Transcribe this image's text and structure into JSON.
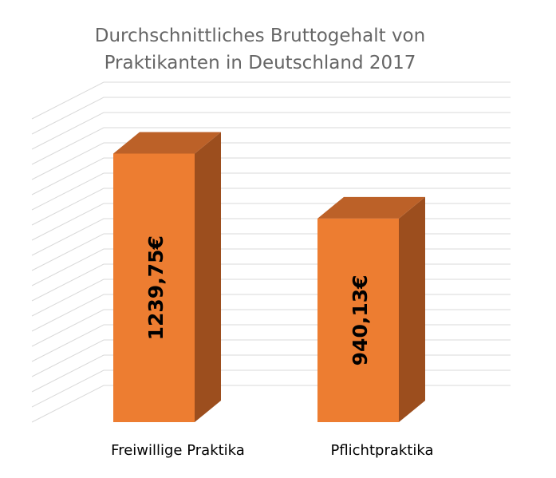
{
  "chart_data": {
    "type": "bar",
    "title": [
      "Durchschnittliches Bruttogehalt von",
      "Praktikanten in Deutschland 2017"
    ],
    "xlabel": "",
    "ylabel": "",
    "categories": [
      "Freiwillige Praktika",
      "Pflichtpraktika"
    ],
    "values": [
      1239.75,
      940.13
    ],
    "value_labels": [
      "1239,75€",
      "940,13€"
    ],
    "ylim": [
      0,
      1400
    ],
    "grid": true,
    "legend": "none",
    "style": "3d-column"
  },
  "colors": {
    "bar_front": "#ED7D31",
    "bar_side": "#9C4E1E",
    "bar_top": "#BC6128",
    "gridline": "#D9D9D9",
    "title": "#666666"
  }
}
